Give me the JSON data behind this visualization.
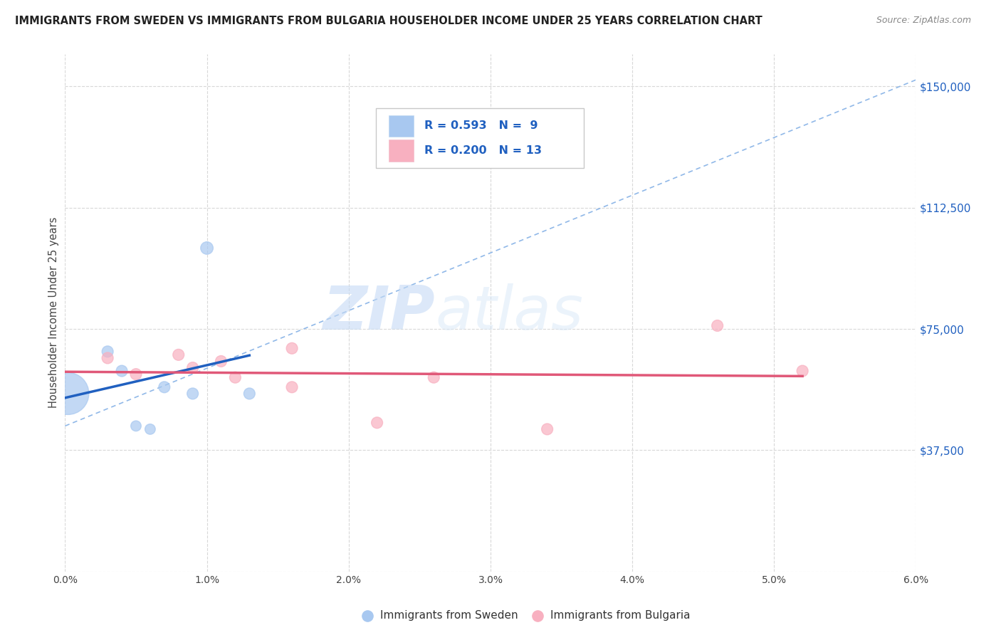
{
  "title": "IMMIGRANTS FROM SWEDEN VS IMMIGRANTS FROM BULGARIA HOUSEHOLDER INCOME UNDER 25 YEARS CORRELATION CHART",
  "source": "Source: ZipAtlas.com",
  "ylabel": "Householder Income Under 25 years",
  "yticks": [
    0,
    37500,
    75000,
    112500,
    150000
  ],
  "ytick_labels": [
    "",
    "$37,500",
    "$75,000",
    "$112,500",
    "$150,000"
  ],
  "xlim": [
    0.0,
    0.06
  ],
  "ylim": [
    0,
    160000
  ],
  "sweden_x": [
    0.0002,
    0.003,
    0.004,
    0.005,
    0.006,
    0.007,
    0.009,
    0.01,
    0.013
  ],
  "sweden_y": [
    55000,
    68000,
    62000,
    45000,
    44000,
    57000,
    55000,
    100000,
    55000
  ],
  "sweden_size": [
    1800,
    130,
    130,
    110,
    110,
    130,
    130,
    160,
    130
  ],
  "bulgaria_x": [
    0.003,
    0.005,
    0.008,
    0.009,
    0.011,
    0.012,
    0.016,
    0.016,
    0.022,
    0.026,
    0.034,
    0.046,
    0.052
  ],
  "bulgaria_y": [
    66000,
    61000,
    67000,
    63000,
    65000,
    60000,
    69000,
    57000,
    46000,
    60000,
    44000,
    76000,
    62000
  ],
  "bulgaria_size": [
    130,
    130,
    130,
    130,
    130,
    130,
    130,
    130,
    130,
    130,
    130,
    130,
    130
  ],
  "sweden_color": "#a8c8f0",
  "sweden_edge_color": "#a8c8f0",
  "bulgaria_color": "#f8b0c0",
  "bulgaria_edge_color": "#f8b0c0",
  "sweden_line_color": "#2060c0",
  "bulgaria_line_color": "#e05878",
  "dashed_line_color": "#90b8e8",
  "sweden_R": "0.593",
  "sweden_N": "9",
  "bulgaria_R": "0.200",
  "bulgaria_N": "13",
  "watermark_zip": "ZIP",
  "watermark_atlas": "atlas",
  "background_color": "#ffffff",
  "grid_color": "#d8d8d8",
  "legend_rect_sweden": "#a8c8f0",
  "legend_rect_bulgaria": "#f8b0c0",
  "legend_text_color": "#2060c0",
  "legend_label_color": "#333333"
}
